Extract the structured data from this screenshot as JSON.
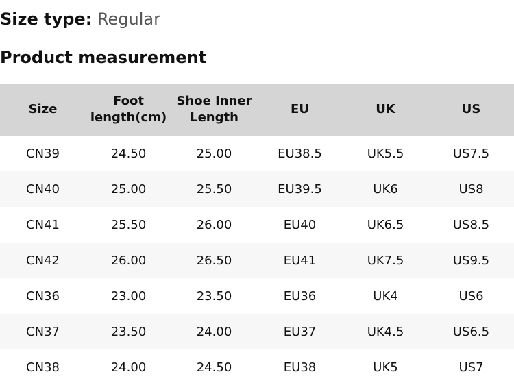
{
  "size_type": {
    "label": "Size type:",
    "value": "Regular"
  },
  "section_title": "Product measurement",
  "table": {
    "headers": [
      "Size",
      "Foot length(cm)",
      "Shoe Inner Length",
      "EU",
      "UK",
      "US"
    ],
    "rows": [
      [
        "CN39",
        "24.50",
        "25.00",
        "EU38.5",
        "UK5.5",
        "US7.5"
      ],
      [
        "CN40",
        "25.00",
        "25.50",
        "EU39.5",
        "UK6",
        "US8"
      ],
      [
        "CN41",
        "25.50",
        "26.00",
        "EU40",
        "UK6.5",
        "US8.5"
      ],
      [
        "CN42",
        "26.00",
        "26.50",
        "EU41",
        "UK7.5",
        "US9.5"
      ],
      [
        "CN36",
        "23.00",
        "23.50",
        "EU36",
        "UK4",
        "US6"
      ],
      [
        "CN37",
        "23.50",
        "24.00",
        "EU37",
        "UK4.5",
        "US6.5"
      ],
      [
        "CN38",
        "24.00",
        "24.50",
        "EU38",
        "UK5",
        "US7"
      ]
    ]
  }
}
